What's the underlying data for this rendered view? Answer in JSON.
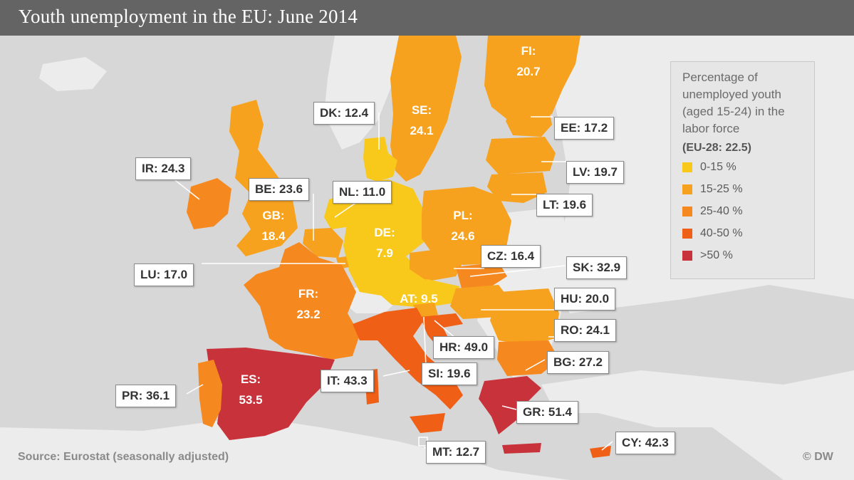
{
  "title": "Youth unemployment in the EU: June 2014",
  "legend": {
    "title_lines": [
      "Percentage of",
      "unemployed youth",
      "(aged 15-24) in the",
      "labor force"
    ],
    "eu_average": "(EU-28: 22.5)",
    "items": [
      {
        "label": "0-15 %",
        "color": "#f8c91b"
      },
      {
        "label": "15-25 %",
        "color": "#f7a21f"
      },
      {
        "label": "25-40 %",
        "color": "#f5891f"
      },
      {
        "label": "40-50 %",
        "color": "#f05f16"
      },
      {
        "label": ">50 %",
        "color": "#c8323b"
      }
    ]
  },
  "countries": [
    {
      "code": "FI",
      "value": "20.7",
      "text": "FI: 20.7",
      "class": "15-25 %"
    },
    {
      "code": "SE",
      "value": "24.1",
      "text": "SE: 24.1",
      "class": "15-25 %"
    },
    {
      "code": "DK",
      "value": "12.4",
      "text": "DK: 12.4",
      "class": "0-15 %"
    },
    {
      "code": "EE",
      "value": "17.2",
      "text": "EE: 17.2",
      "class": "15-25 %"
    },
    {
      "code": "LV",
      "value": "19.7",
      "text": "LV: 19.7",
      "class": "15-25 %"
    },
    {
      "code": "LT",
      "value": "19.6",
      "text": "LT: 19.6",
      "class": "15-25 %"
    },
    {
      "code": "IR",
      "value": "24.3",
      "text": "IR: 24.3",
      "class": "15-25 %"
    },
    {
      "code": "BE",
      "value": "23.6",
      "text": "BE: 23.6",
      "class": "15-25 %"
    },
    {
      "code": "GB",
      "value": "18.4",
      "text": "GB: 18.4",
      "class": "15-25 %"
    },
    {
      "code": "NL",
      "value": "11.0",
      "text": "NL: 11.0",
      "class": "0-15 %"
    },
    {
      "code": "DE",
      "value": "7.9",
      "text": "DE: 7.9",
      "class": "0-15 %"
    },
    {
      "code": "PL",
      "value": "24.6",
      "text": "PL: 24.6",
      "class": "15-25 %"
    },
    {
      "code": "CZ",
      "value": "16.4",
      "text": "CZ: 16.4",
      "class": "15-25 %"
    },
    {
      "code": "SK",
      "value": "32.9",
      "text": "SK: 32.9",
      "class": "25-40 %"
    },
    {
      "code": "LU",
      "value": "17.0",
      "text": "LU: 17.0",
      "class": "15-25 %"
    },
    {
      "code": "FR",
      "value": "23.2",
      "text": "FR: 23.2",
      "class": "15-25 %"
    },
    {
      "code": "AT",
      "value": "9.5",
      "text": "AT: 9.5",
      "class": "0-15 %"
    },
    {
      "code": "HU",
      "value": "20.0",
      "text": "HU: 20.0",
      "class": "15-25 %"
    },
    {
      "code": "RO",
      "value": "24.1",
      "text": "RO: 24.1",
      "class": "15-25 %"
    },
    {
      "code": "HR",
      "value": "49.0",
      "text": "HR: 49.0",
      "class": "40-50 %"
    },
    {
      "code": "BG",
      "value": "27.2",
      "text": "BG: 27.2",
      "class": "25-40 %"
    },
    {
      "code": "IT",
      "value": "43.3",
      "text": "IT: 43.3",
      "class": "40-50 %"
    },
    {
      "code": "SI",
      "value": "19.6",
      "text": "SI: 19.6",
      "class": "15-25 %"
    },
    {
      "code": "ES",
      "value": "53.5",
      "text": "ES: 53.5",
      "class": ">50 %"
    },
    {
      "code": "PR",
      "value": "36.1",
      "text": "PR: 36.1",
      "class": "25-40 %"
    },
    {
      "code": "GR",
      "value": "51.4",
      "text": "GR: 51.4",
      "class": ">50 %"
    },
    {
      "code": "MT",
      "value": "12.7",
      "text": "MT: 12.7",
      "class": "0-15 %"
    },
    {
      "code": "CY",
      "value": "42.3",
      "text": "CY: 42.3",
      "class": "40-50 %"
    }
  ],
  "labels": {
    "FI": {
      "code": "FI:",
      "value": "20.7"
    },
    "SE": {
      "code": "SE:",
      "value": "24.1"
    },
    "GB": {
      "code": "GB:",
      "value": "18.4"
    },
    "DE": {
      "code": "DE:",
      "value": "7.9"
    },
    "PL": {
      "code": "PL:",
      "value": "24.6"
    },
    "FR": {
      "code": "FR:",
      "value": "23.2"
    },
    "ES": {
      "code": "ES:",
      "value": "53.5"
    },
    "DK": "DK: 12.4",
    "EE": "EE: 17.2",
    "LV": "LV: 19.7",
    "LT": "LT: 19.6",
    "IR": "IR: 24.3",
    "BE": "BE: 23.6",
    "NL": "NL: 11.0",
    "CZ": "CZ: 16.4",
    "SK": "SK: 32.9",
    "LU": "LU: 17.0",
    "AT": "AT: 9.5",
    "HU": "HU: 20.0",
    "RO": "RO: 24.1",
    "HR": "HR: 49.0",
    "BG": "BG: 27.2",
    "IT": "IT: 43.3",
    "SI": "SI: 19.6",
    "PR": "PR: 36.1",
    "GR": "GR: 51.4",
    "MT": "MT: 12.7",
    "CY": "CY: 42.3"
  },
  "source": "Source: Eurostat (seasonally adjusted)",
  "credit": "© DW"
}
